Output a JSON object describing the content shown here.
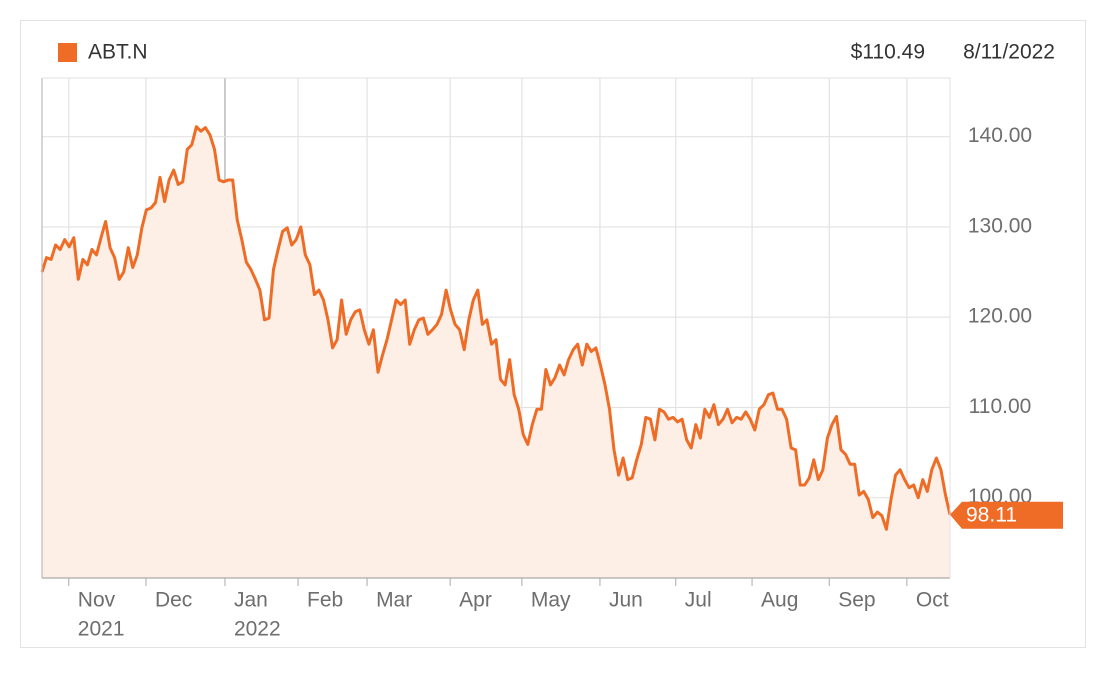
{
  "header": {
    "price": "$110.49",
    "date": "8/11/2022"
  },
  "chart_data": {
    "type": "line",
    "series": [
      {
        "name": "ABT.N",
        "color": "#ee6c25",
        "fill": "#fdeee6",
        "values": [
          125.0,
          126.6,
          126.4,
          128.0,
          127.5,
          128.6,
          127.8,
          128.8,
          124.2,
          126.4,
          125.8,
          127.5,
          126.9,
          128.8,
          130.6,
          127.7,
          126.6,
          124.2,
          125.0,
          127.7,
          125.5,
          126.9,
          129.9,
          131.9,
          132.1,
          132.7,
          135.5,
          132.8,
          135.2,
          136.3,
          134.7,
          135.0,
          138.6,
          139.1,
          141.1,
          140.6,
          141.0,
          140.2,
          138.6,
          135.2,
          135.0,
          135.2,
          135.2,
          130.8,
          128.6,
          126.1,
          125.3,
          124.2,
          123.0,
          119.7,
          119.9,
          125.3,
          127.5,
          129.5,
          129.9,
          128.0,
          128.6,
          130.0,
          126.9,
          125.8,
          122.5,
          123.0,
          121.9,
          119.7,
          116.6,
          117.5,
          121.9,
          118.1,
          119.7,
          120.6,
          120.8,
          118.6,
          117.0,
          118.6,
          113.9,
          115.8,
          117.5,
          119.7,
          121.9,
          121.4,
          121.9,
          117.0,
          118.6,
          119.7,
          119.9,
          118.1,
          118.6,
          119.2,
          120.3,
          123.0,
          120.8,
          119.2,
          118.6,
          116.4,
          119.7,
          121.9,
          123.0,
          119.2,
          119.7,
          117.0,
          117.5,
          113.1,
          112.5,
          115.3,
          111.4,
          109.8,
          107.0,
          105.9,
          108.1,
          109.8,
          109.8,
          114.2,
          112.5,
          113.3,
          114.7,
          113.6,
          115.3,
          116.4,
          117.0,
          114.7,
          117.0,
          116.2,
          116.6,
          114.7,
          112.5,
          109.8,
          105.3,
          102.5,
          104.4,
          102.0,
          102.2,
          104.2,
          105.9,
          108.9,
          108.7,
          106.4,
          109.8,
          109.5,
          108.7,
          108.9,
          108.4,
          108.7,
          106.4,
          105.5,
          108.1,
          106.6,
          109.8,
          108.9,
          110.3,
          108.1,
          108.7,
          109.8,
          108.3,
          108.9,
          108.7,
          109.5,
          108.7,
          107.5,
          109.8,
          110.3,
          111.4,
          111.6,
          109.8,
          109.8,
          108.7,
          105.5,
          105.3,
          101.4,
          101.4,
          102.2,
          104.2,
          102.0,
          103.1,
          106.6,
          108.1,
          109.0,
          105.3,
          104.8,
          103.7,
          103.7,
          100.3,
          100.7,
          99.8,
          97.8,
          98.4,
          98.0,
          96.5,
          99.8,
          102.5,
          103.1,
          102.0,
          101.1,
          101.4,
          100.0,
          102.0,
          100.7,
          103.1,
          104.4,
          103.1,
          100.3,
          98.11
        ]
      }
    ],
    "xlim": [
      0,
      200
    ],
    "xticks": [
      {
        "value": 5.9,
        "label": "Nov"
      },
      {
        "value": 22.9,
        "label": "Dec"
      },
      {
        "value": 40.3,
        "label": "Jan"
      },
      {
        "value": 56.4,
        "label": "Feb"
      },
      {
        "value": 71.6,
        "label": "Mar"
      },
      {
        "value": 89.9,
        "label": "Apr"
      },
      {
        "value": 105.7,
        "label": "May"
      },
      {
        "value": 122.9,
        "label": "Jun"
      },
      {
        "value": 139.6,
        "label": "Jul"
      },
      {
        "value": 156.4,
        "label": "Aug"
      },
      {
        "value": 173.4,
        "label": "Sep"
      },
      {
        "value": 190.5,
        "label": "Oct"
      }
    ],
    "year_labels": [
      {
        "value": 5.9,
        "label": "2021"
      },
      {
        "value": 40.3,
        "label": "2022"
      }
    ],
    "ylim": [
      91.1,
      146.5
    ],
    "yticks": [
      {
        "value": 100,
        "label": "100.00"
      },
      {
        "value": 110,
        "label": "110.00"
      },
      {
        "value": 120,
        "label": "120.00"
      },
      {
        "value": 130,
        "label": "130.00"
      },
      {
        "value": 140,
        "label": "140.00"
      }
    ],
    "grid": true,
    "y_axis_side": "right"
  }
}
